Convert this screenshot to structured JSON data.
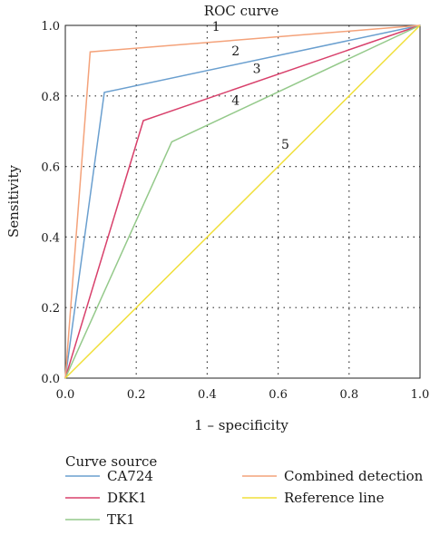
{
  "chart_data": {
    "type": "line",
    "title": "ROC curve",
    "xlabel": "1 – specificity",
    "ylabel": "Sensitivity",
    "xlim": [
      0,
      1
    ],
    "ylim": [
      0,
      1
    ],
    "x_ticks": [
      "0.0",
      "0.2",
      "0.4",
      "0.6",
      "0.8",
      "1.0"
    ],
    "y_ticks": [
      "0.0",
      "0.2",
      "0.4",
      "0.6",
      "0.8",
      "1.0"
    ],
    "grid": "dotted",
    "legend_title": "Curve source",
    "legend_position": "bottom",
    "series": [
      {
        "name": "CA724",
        "label": "2",
        "color": "#6a9fcf",
        "x": [
          0,
          0.11,
          1
        ],
        "y": [
          0,
          0.81,
          1
        ],
        "label_at": [
          0.48,
          0.915
        ]
      },
      {
        "name": "DKK1",
        "label": "3",
        "color": "#d8406b",
        "x": [
          0,
          0.22,
          1
        ],
        "y": [
          0,
          0.73,
          1
        ],
        "label_at": [
          0.54,
          0.865
        ]
      },
      {
        "name": "TK1",
        "label": "4",
        "color": "#94c98a",
        "x": [
          0,
          0.3,
          1
        ],
        "y": [
          0,
          0.67,
          1
        ],
        "label_at": [
          0.48,
          0.775
        ]
      },
      {
        "name": "Combined detection",
        "label": "1",
        "color": "#f4a27a",
        "x": [
          0,
          0.07,
          1
        ],
        "y": [
          0,
          0.925,
          1
        ],
        "label_at": [
          0.425,
          0.985
        ]
      },
      {
        "name": "Reference line",
        "label": "5",
        "color": "#f0df3a",
        "x": [
          0,
          1
        ],
        "y": [
          0,
          1
        ],
        "label_at": [
          0.62,
          0.65
        ]
      }
    ]
  }
}
